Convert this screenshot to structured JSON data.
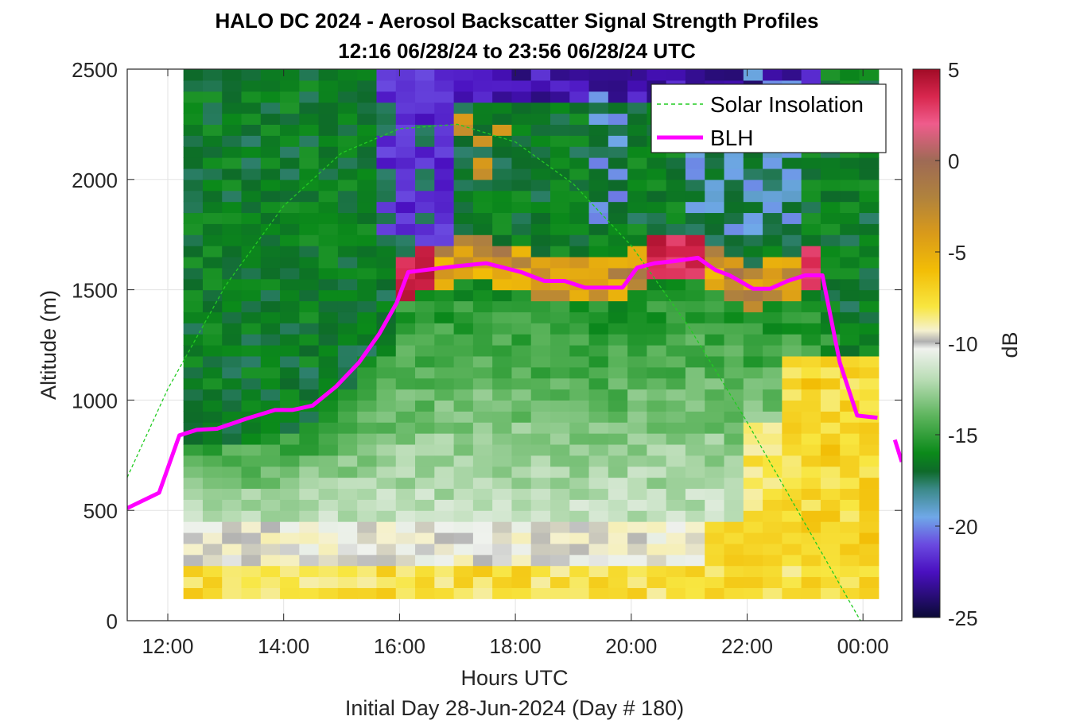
{
  "chart_data": {
    "type": "heatmap",
    "title_line1": "HALO DC 2024 - Aerosol Backscatter Signal Strength Profiles",
    "title_line2": "12:16 06/28/24 to 23:56 06/28/24  UTC",
    "xlabel": "Hours UTC",
    "xlabel2": "Initial Day 28-Jun-2024 (Day # 180)",
    "ylabel": "Altitude (m)",
    "colorbar_label": "dB",
    "xlim_hours": [
      11.3,
      24.67
    ],
    "ylim": [
      0,
      2500
    ],
    "x_ticks": [
      12,
      14,
      16,
      18,
      20,
      22,
      24
    ],
    "x_tick_labels": [
      "12:00",
      "14:00",
      "16:00",
      "18:00",
      "20:00",
      "22:00",
      "00:00"
    ],
    "y_ticks": [
      0,
      500,
      1000,
      1500,
      2000,
      2500
    ],
    "y_tick_labels": [
      "0",
      "500",
      "1000",
      "1500",
      "2000",
      "2500"
    ],
    "clim": [
      -25,
      5
    ],
    "colorbar_ticks": [
      5,
      0,
      -5,
      -10,
      -15,
      -20,
      -25
    ],
    "colorbar_tick_labels": [
      "5",
      "0",
      "-5",
      "-10",
      "-15",
      "-20",
      "-25"
    ],
    "grid": true,
    "legend_placement": "top-right",
    "heatmap_extent": {
      "x_start_hour": 12.27,
      "x_end_hour": 23.97,
      "bin_hours": 0.3333,
      "alt_start": 100,
      "alt_end": 2500,
      "bin_m": 50
    },
    "heatmap_summary": "Layered profile: near-surface 100-500 m strong signal (-9 to -6 dB), mixed layer -10 to -14 dB below BLH, -16 dB free troposphere above, enhanced -5 to 3 dB layer near 1550-1650 m from 16:00-21:30, weak -20 to -22 dB patches above 1700 m in afternoon.",
    "series": [
      {
        "name": "Solar Insolation",
        "style": "dashed",
        "color": "#22cc22",
        "x": [
          11.3,
          12.0,
          13.0,
          14.0,
          15.0,
          16.0,
          17.0,
          18.0,
          19.0,
          20.0,
          21.0,
          22.0,
          23.0,
          24.0,
          24.67
        ],
        "y": [
          650,
          1050,
          1520,
          1880,
          2120,
          2230,
          2250,
          2170,
          1980,
          1700,
          1330,
          900,
          440,
          -20,
          -20
        ]
      },
      {
        "name": "BLH",
        "style": "solid",
        "color": "#ff00ff",
        "x": [
          11.3,
          11.85,
          12.2,
          12.5,
          12.85,
          13.35,
          13.85,
          14.15,
          14.5,
          14.9,
          15.3,
          15.65,
          15.95,
          16.15,
          16.45,
          16.75,
          17.1,
          17.5,
          17.8,
          18.1,
          18.5,
          18.85,
          19.2,
          19.55,
          19.85,
          20.1,
          20.4,
          20.75,
          21.15,
          21.45,
          21.7,
          22.1,
          22.4,
          22.7,
          23.0,
          23.3,
          23.6,
          23.9,
          24.25
        ],
        "y": [
          510,
          580,
          840,
          865,
          870,
          915,
          955,
          955,
          975,
          1060,
          1170,
          1300,
          1440,
          1580,
          1590,
          1600,
          1610,
          1620,
          1600,
          1580,
          1540,
          1540,
          1510,
          1510,
          1510,
          1600,
          1620,
          1630,
          1645,
          1590,
          1565,
          1505,
          1505,
          1540,
          1565,
          1565,
          1170,
          930,
          920
        ]
      },
      {
        "name": "BLH-tail",
        "style": "solid",
        "color": "#ff00ff",
        "x": [
          24.55,
          24.67
        ],
        "y": [
          820,
          720
        ]
      }
    ]
  },
  "legend": [
    {
      "label": "Solar Insolation",
      "style": "dashed",
      "color": "#22cc22"
    },
    {
      "label": "BLH",
      "style": "solid",
      "color": "#ff00ff"
    }
  ],
  "colormap_stops": [
    {
      "v": 5,
      "color": "#a10b26"
    },
    {
      "v": 3.5,
      "color": "#d8274e"
    },
    {
      "v": 2,
      "color": "#ef5c8c"
    },
    {
      "v": 0,
      "color": "#9e6a55"
    },
    {
      "v": -2,
      "color": "#b0823d"
    },
    {
      "v": -4,
      "color": "#d99a1a"
    },
    {
      "v": -6,
      "color": "#f2bd06"
    },
    {
      "v": -8,
      "color": "#f8e640"
    },
    {
      "v": -9.3,
      "color": "#f5f1cf"
    },
    {
      "v": -9.9,
      "color": "#b0b0b0"
    },
    {
      "v": -10.3,
      "color": "#f0f2ee"
    },
    {
      "v": -12,
      "color": "#b8dcb4"
    },
    {
      "v": -14,
      "color": "#5cb45c"
    },
    {
      "v": -16,
      "color": "#0b8a1a"
    },
    {
      "v": -17,
      "color": "#0e6a2a"
    },
    {
      "v": -18,
      "color": "#3c8a8a"
    },
    {
      "v": -19.5,
      "color": "#6fa8e8"
    },
    {
      "v": -21,
      "color": "#6a4ae0"
    },
    {
      "v": -22.5,
      "color": "#4a10c0"
    },
    {
      "v": -25,
      "color": "#0a0a35"
    }
  ]
}
